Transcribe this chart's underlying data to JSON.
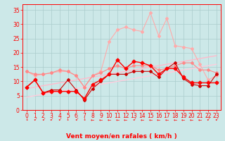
{
  "x": [
    0,
    1,
    2,
    3,
    4,
    5,
    6,
    7,
    8,
    9,
    10,
    11,
    12,
    13,
    14,
    15,
    16,
    17,
    18,
    19,
    20,
    21,
    22,
    23
  ],
  "lines": [
    {
      "comment": "straight diagonal light pink - upper regression line",
      "y": [
        7.5,
        8.0,
        8.5,
        9.0,
        9.5,
        10.0,
        10.5,
        11.0,
        11.5,
        12.0,
        12.5,
        13.0,
        13.5,
        14.0,
        14.5,
        15.0,
        15.5,
        16.0,
        16.5,
        17.0,
        17.5,
        18.0,
        18.5,
        19.0
      ],
      "color": "#ffbbcc",
      "lw": 1.0,
      "marker": null,
      "ms": 0
    },
    {
      "comment": "straight diagonal light pink - lower regression line",
      "y": [
        4.5,
        5.0,
        5.5,
        6.0,
        6.5,
        7.0,
        7.5,
        8.0,
        8.5,
        9.0,
        9.5,
        10.0,
        10.5,
        11.0,
        11.5,
        12.0,
        12.5,
        13.0,
        13.5,
        14.0,
        14.5,
        15.0,
        15.5,
        16.0
      ],
      "color": "#ffccdd",
      "lw": 1.0,
      "marker": null,
      "ms": 0
    },
    {
      "comment": "wavy light pink with diamond markers - top wavy",
      "y": [
        13.5,
        12.0,
        12.5,
        13.0,
        13.5,
        13.5,
        12.0,
        8.0,
        12.0,
        13.5,
        24.0,
        28.0,
        29.0,
        28.0,
        27.5,
        34.0,
        26.0,
        32.0,
        22.5,
        22.0,
        21.5,
        16.0,
        10.5,
        12.0
      ],
      "color": "#ffaaaa",
      "lw": 0.8,
      "marker": "D",
      "ms": 2.0
    },
    {
      "comment": "medium pink wavy with diamond markers",
      "y": [
        13.5,
        12.5,
        12.5,
        13.0,
        14.0,
        13.5,
        12.0,
        8.0,
        12.0,
        13.0,
        14.5,
        15.5,
        14.5,
        15.5,
        15.5,
        15.5,
        14.0,
        14.5,
        15.5,
        16.5,
        16.5,
        14.0,
        14.0,
        13.0
      ],
      "color": "#ff8888",
      "lw": 0.8,
      "marker": "D",
      "ms": 2.0
    },
    {
      "comment": "dark red with + markers",
      "y": [
        8.0,
        10.5,
        6.0,
        7.0,
        7.0,
        10.5,
        7.0,
        3.5,
        7.5,
        10.0,
        12.5,
        12.5,
        12.5,
        13.5,
        13.5,
        13.5,
        11.5,
        14.5,
        16.5,
        11.0,
        9.0,
        8.5,
        8.5,
        12.5
      ],
      "color": "#cc0000",
      "lw": 0.8,
      "marker": "P",
      "ms": 2.5
    },
    {
      "comment": "bright red with diamond markers",
      "y": [
        8.0,
        10.5,
        6.0,
        6.5,
        6.5,
        6.5,
        6.5,
        4.0,
        9.0,
        10.5,
        12.5,
        17.5,
        14.5,
        17.0,
        16.5,
        15.5,
        12.5,
        14.5,
        14.5,
        11.5,
        9.5,
        9.5,
        9.5,
        9.5
      ],
      "color": "#ff0000",
      "lw": 1.0,
      "marker": "D",
      "ms": 2.5
    }
  ],
  "xlabel": "Vent moyen/en rafales ( km/h )",
  "xlim": [
    -0.5,
    23.5
  ],
  "ylim": [
    0,
    37
  ],
  "xticks": [
    0,
    1,
    2,
    3,
    4,
    5,
    6,
    7,
    8,
    9,
    10,
    11,
    12,
    13,
    14,
    15,
    16,
    17,
    18,
    19,
    20,
    21,
    22,
    23
  ],
  "yticks": [
    0,
    5,
    10,
    15,
    20,
    25,
    30,
    35
  ],
  "bg_color": "#cce8e8",
  "grid_color": "#aacccc",
  "axis_color": "#ff0000",
  "label_color": "#ff0000",
  "tick_color": "#ff0000",
  "xlabel_fontsize": 6.5,
  "tick_fontsize": 5.5,
  "arrow_chars": [
    "↓",
    "↙",
    "↙",
    "↙",
    "↙",
    "↓",
    "↙",
    "↓",
    "←",
    "←",
    "←",
    "←",
    "←",
    "↙",
    "←",
    "←",
    "←",
    "←",
    "←",
    "←",
    "←",
    "←",
    "↙",
    "↙"
  ]
}
